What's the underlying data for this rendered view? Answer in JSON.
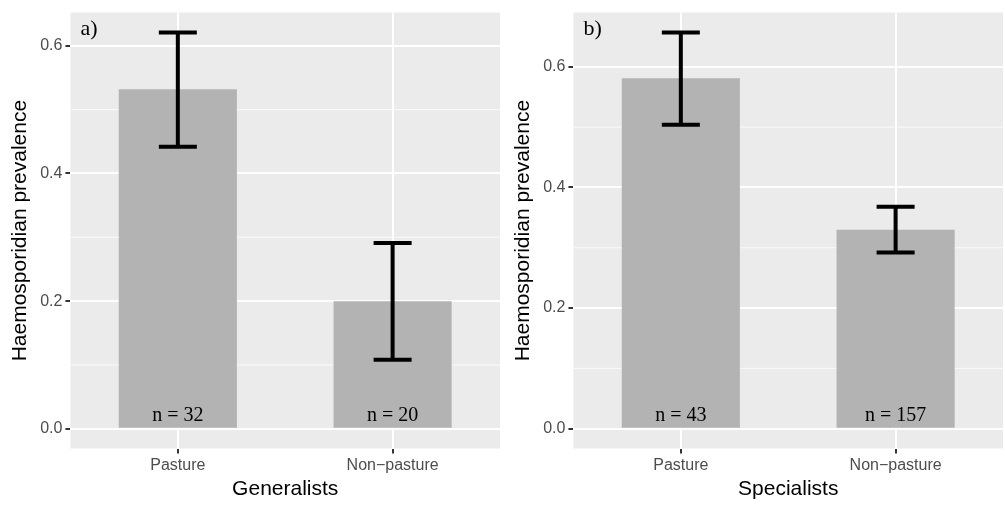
{
  "chart_data": [
    {
      "type": "bar",
      "categories": [
        "Pasture",
        "Non−pasture"
      ],
      "values": [
        0.532,
        0.2
      ],
      "color": "#b3b3b3",
      "errors": [
        [
          0.442,
          0.621
        ],
        [
          0.108,
          0.291
        ]
      ],
      "xlabel": "Generalists",
      "ylabel": "Haemosporidian prevalence",
      "ylim": [
        -0.031,
        0.652
      ],
      "yticks": [
        {
          "value": 0,
          "label": "0.0"
        },
        0.2,
        0.4,
        0.6
      ],
      "grid": true,
      "annotations": [
        "a)",
        "n = 32",
        "n = 20"
      ]
    },
    {
      "type": "bar",
      "categories": [
        "Pasture",
        "Non−pasture"
      ],
      "values": [
        0.581,
        0.33
      ],
      "color": "#b3b3b3",
      "errors": [
        [
          0.504,
          0.657
        ],
        [
          0.292,
          0.368
        ]
      ],
      "xlabel": "Specialists",
      "ylabel": "Haemosporidian prevalence",
      "ylim": [
        -0.033,
        0.69
      ],
      "yticks": [
        {
          "value": 0,
          "label": "0.0"
        },
        0.2,
        0.4,
        0.6
      ],
      "grid": true,
      "annotations": [
        "b)",
        "n = 43",
        "n = 157"
      ]
    }
  ]
}
